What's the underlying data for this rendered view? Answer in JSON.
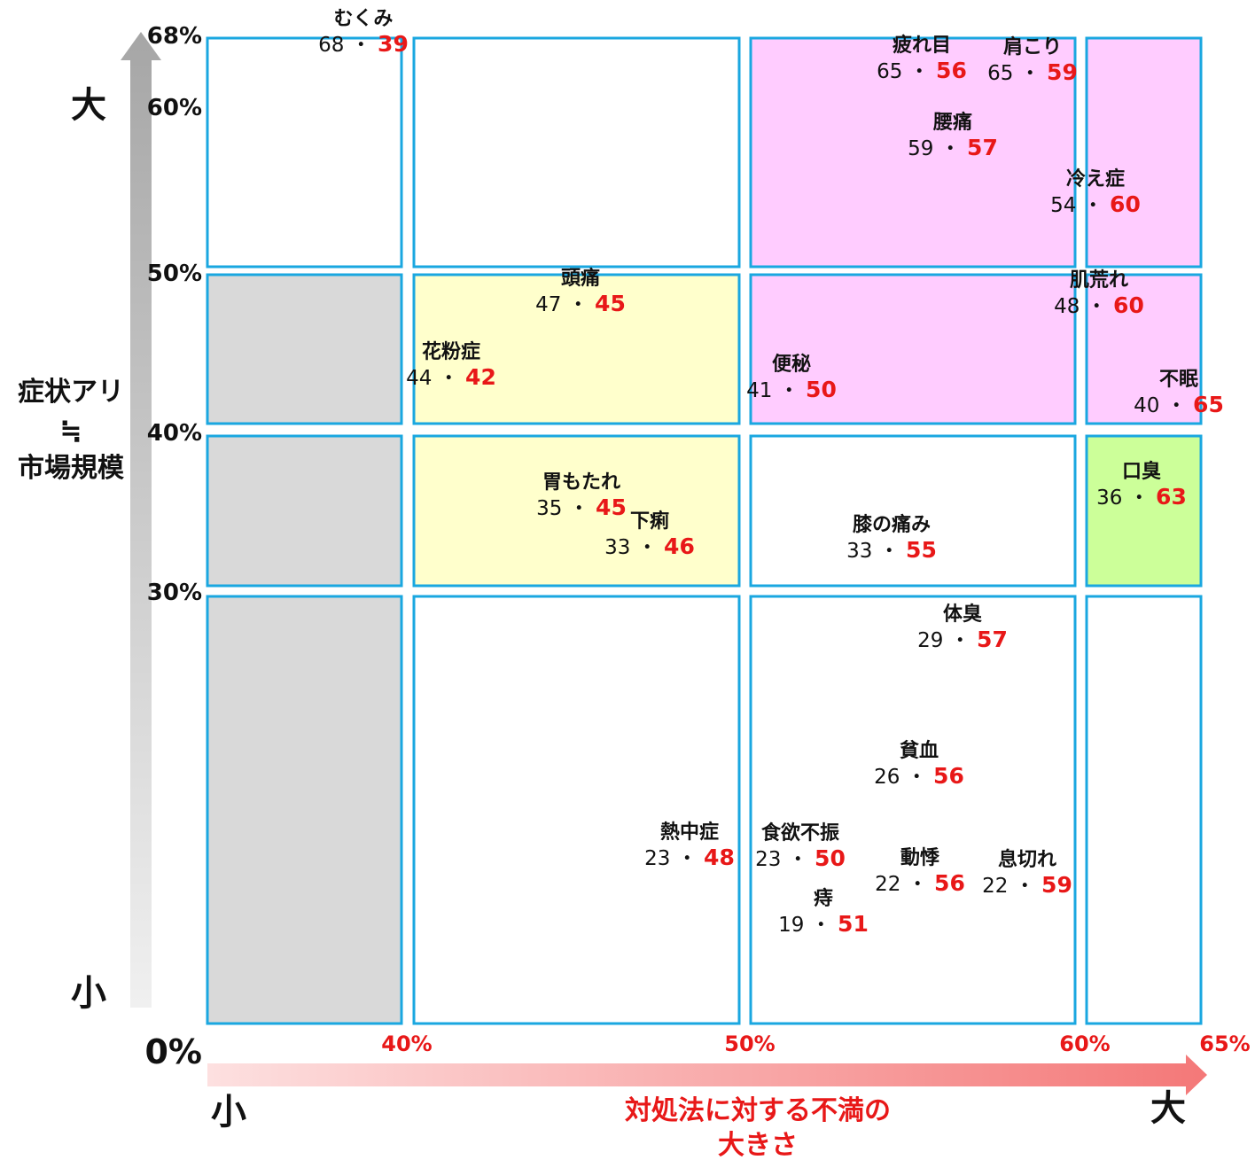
{
  "chart_data": {
    "type": "scatter",
    "title": "",
    "xlabel": [
      "対処法に対する不満の",
      "大きさ"
    ],
    "ylabel": [
      "症状アリ",
      "≒",
      "市場規模"
    ],
    "y_ticks": [
      "68%",
      "60%",
      "50%",
      "40%",
      "30%",
      "0%"
    ],
    "x_ticks": [
      "40%",
      "50%",
      "60%",
      "65%"
    ],
    "y_axis_ends": {
      "high": "大",
      "low": "小"
    },
    "x_axis_ends": {
      "low": "小",
      "high": "大"
    },
    "separator": "・",
    "cells": [
      {
        "col": 0,
        "row": 0,
        "fill": "#ffffff"
      },
      {
        "col": 1,
        "row": 0,
        "fill": "#ffffff"
      },
      {
        "col": 2,
        "row": 0,
        "fill": "#ffccff"
      },
      {
        "col": 3,
        "row": 0,
        "fill": "#ffccff"
      },
      {
        "col": 0,
        "row": 1,
        "fill": "#d9d9d9"
      },
      {
        "col": 1,
        "row": 1,
        "fill": "#ffffcc"
      },
      {
        "col": 2,
        "row": 1,
        "fill": "#ffccff"
      },
      {
        "col": 3,
        "row": 1,
        "fill": "#ffccff"
      },
      {
        "col": 0,
        "row": 2,
        "fill": "#d9d9d9"
      },
      {
        "col": 1,
        "row": 2,
        "fill": "#ffffcc"
      },
      {
        "col": 2,
        "row": 2,
        "fill": "#ffffff"
      },
      {
        "col": 3,
        "row": 2,
        "fill": "#ccff99"
      },
      {
        "col": 0,
        "row": 3,
        "fill": "#d9d9d9"
      },
      {
        "col": 1,
        "row": 3,
        "fill": "#ffffff"
      },
      {
        "col": 2,
        "row": 3,
        "fill": "#ffffff"
      },
      {
        "col": 3,
        "row": 3,
        "fill": "#ffffff"
      }
    ],
    "points": [
      {
        "name": "むくみ",
        "y": 68,
        "x": 39
      },
      {
        "name": "疲れ目",
        "y": 65,
        "x": 56
      },
      {
        "name": "肩こり",
        "y": 65,
        "x": 59
      },
      {
        "name": "腰痛",
        "y": 59,
        "x": 57
      },
      {
        "name": "冷え症",
        "y": 54,
        "x": 60
      },
      {
        "name": "頭痛",
        "y": 47,
        "x": 45
      },
      {
        "name": "肌荒れ",
        "y": 48,
        "x": 60
      },
      {
        "name": "花粉症",
        "y": 44,
        "x": 42
      },
      {
        "name": "便秘",
        "y": 41,
        "x": 50
      },
      {
        "name": "不眠",
        "y": 40,
        "x": 65
      },
      {
        "name": "胃もたれ",
        "y": 35,
        "x": 45
      },
      {
        "name": "下痢",
        "y": 33,
        "x": 46
      },
      {
        "name": "膝の痛み",
        "y": 33,
        "x": 55
      },
      {
        "name": "口臭",
        "y": 36,
        "x": 63
      },
      {
        "name": "体臭",
        "y": 29,
        "x": 57
      },
      {
        "name": "貧血",
        "y": 26,
        "x": 56
      },
      {
        "name": "熱中症",
        "y": 23,
        "x": 48
      },
      {
        "name": "食欲不振",
        "y": 23,
        "x": 50
      },
      {
        "name": "動悸",
        "y": 22,
        "x": 56
      },
      {
        "name": "息切れ",
        "y": 22,
        "x": 59
      },
      {
        "name": "痔",
        "y": 19,
        "x": 51
      }
    ]
  }
}
